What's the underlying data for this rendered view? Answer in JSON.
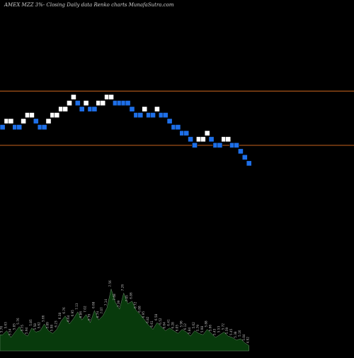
{
  "caption": "AMEX  MZZ  3%-  Closing Daily data  Renko  charts MunafaSutra.com",
  "colors": {
    "background": "#000000",
    "up_brick": "#ffffff",
    "down_brick": "#1e6fe8",
    "brick_border": "#000000",
    "level_line": "#c8641e",
    "volume_fill": "#083a0c",
    "volume_stroke": "#6f8f6f",
    "volume_label": "#bdbdbd"
  },
  "chart_data": {
    "type": "renko",
    "title": "AMEX  MZZ  3%-  Closing Daily data  Renko  charts MunafaSutra.com",
    "box_levels": [
      4,
      5,
      5,
      4,
      4,
      5,
      6,
      6,
      5,
      4,
      4,
      5,
      6,
      6,
      7,
      7,
      8,
      9,
      8,
      7,
      8,
      7,
      7,
      8,
      8,
      9,
      9,
      8,
      8,
      8,
      8,
      7,
      6,
      6,
      7,
      6,
      6,
      7,
      6,
      6,
      5,
      4,
      4,
      3,
      3,
      2,
      1,
      2,
      2,
      3,
      2,
      1,
      1,
      2,
      2,
      1,
      1,
      0,
      -1,
      -2
    ],
    "directions": [
      "down",
      "up",
      "up",
      "down",
      "down",
      "up",
      "up",
      "up",
      "down",
      "down",
      "down",
      "up",
      "up",
      "up",
      "up",
      "up",
      "up",
      "up",
      "down",
      "down",
      "up",
      "down",
      "down",
      "up",
      "up",
      "up",
      "up",
      "down",
      "down",
      "down",
      "down",
      "down",
      "down",
      "down",
      "up",
      "down",
      "down",
      "up",
      "down",
      "down",
      "down",
      "down",
      "down",
      "down",
      "down",
      "down",
      "down",
      "up",
      "up",
      "up",
      "down",
      "down",
      "down",
      "up",
      "up",
      "down",
      "down",
      "down",
      "down",
      "down"
    ],
    "horizontal_levels": [
      10,
      1
    ],
    "volume_labels": [
      "5.76",
      "5.63",
      "5.54",
      "5.85",
      "5.76",
      "5.75",
      "5.94",
      "5.85",
      "5.58",
      "5.62",
      "5.66",
      "5.89",
      "5.98",
      "6.23",
      "6.38",
      "6.76",
      "6.64",
      "6.95",
      "7.13",
      "6.86",
      "7.02",
      "6.79",
      "6.68",
      "6.74",
      "7.07",
      "7.14",
      "7.56",
      "7.68",
      "7.39",
      "7.26",
      "7.05",
      "6.86",
      "6.72",
      "6.88",
      "6.95",
      "6.82",
      "6.61",
      "6.58",
      "6.52",
      "6.64",
      "6.41",
      "6.28",
      "6.05",
      "5.96",
      "6.12",
      "5.84",
      "5.62",
      "5.79",
      "5.98",
      "5.88",
      "5.66",
      "5.43",
      "5.53",
      "5.72",
      "5.59",
      "5.45",
      "5.38",
      "5.16",
      "5.04",
      "4.92"
    ],
    "volume_heights": [
      0.24,
      0.3,
      0.2,
      0.28,
      0.36,
      0.26,
      0.22,
      0.34,
      0.28,
      0.3,
      0.4,
      0.3,
      0.26,
      0.32,
      0.44,
      0.52,
      0.4,
      0.48,
      0.58,
      0.46,
      0.54,
      0.42,
      0.6,
      0.46,
      0.52,
      0.64,
      0.92,
      0.72,
      0.62,
      0.86,
      0.7,
      0.74,
      0.6,
      0.54,
      0.46,
      0.38,
      0.32,
      0.42,
      0.36,
      0.3,
      0.34,
      0.3,
      0.26,
      0.32,
      0.28,
      0.22,
      0.3,
      0.26,
      0.24,
      0.32,
      0.26,
      0.2,
      0.24,
      0.28,
      0.22,
      0.2,
      0.16,
      0.18,
      0.12,
      0.08
    ]
  }
}
